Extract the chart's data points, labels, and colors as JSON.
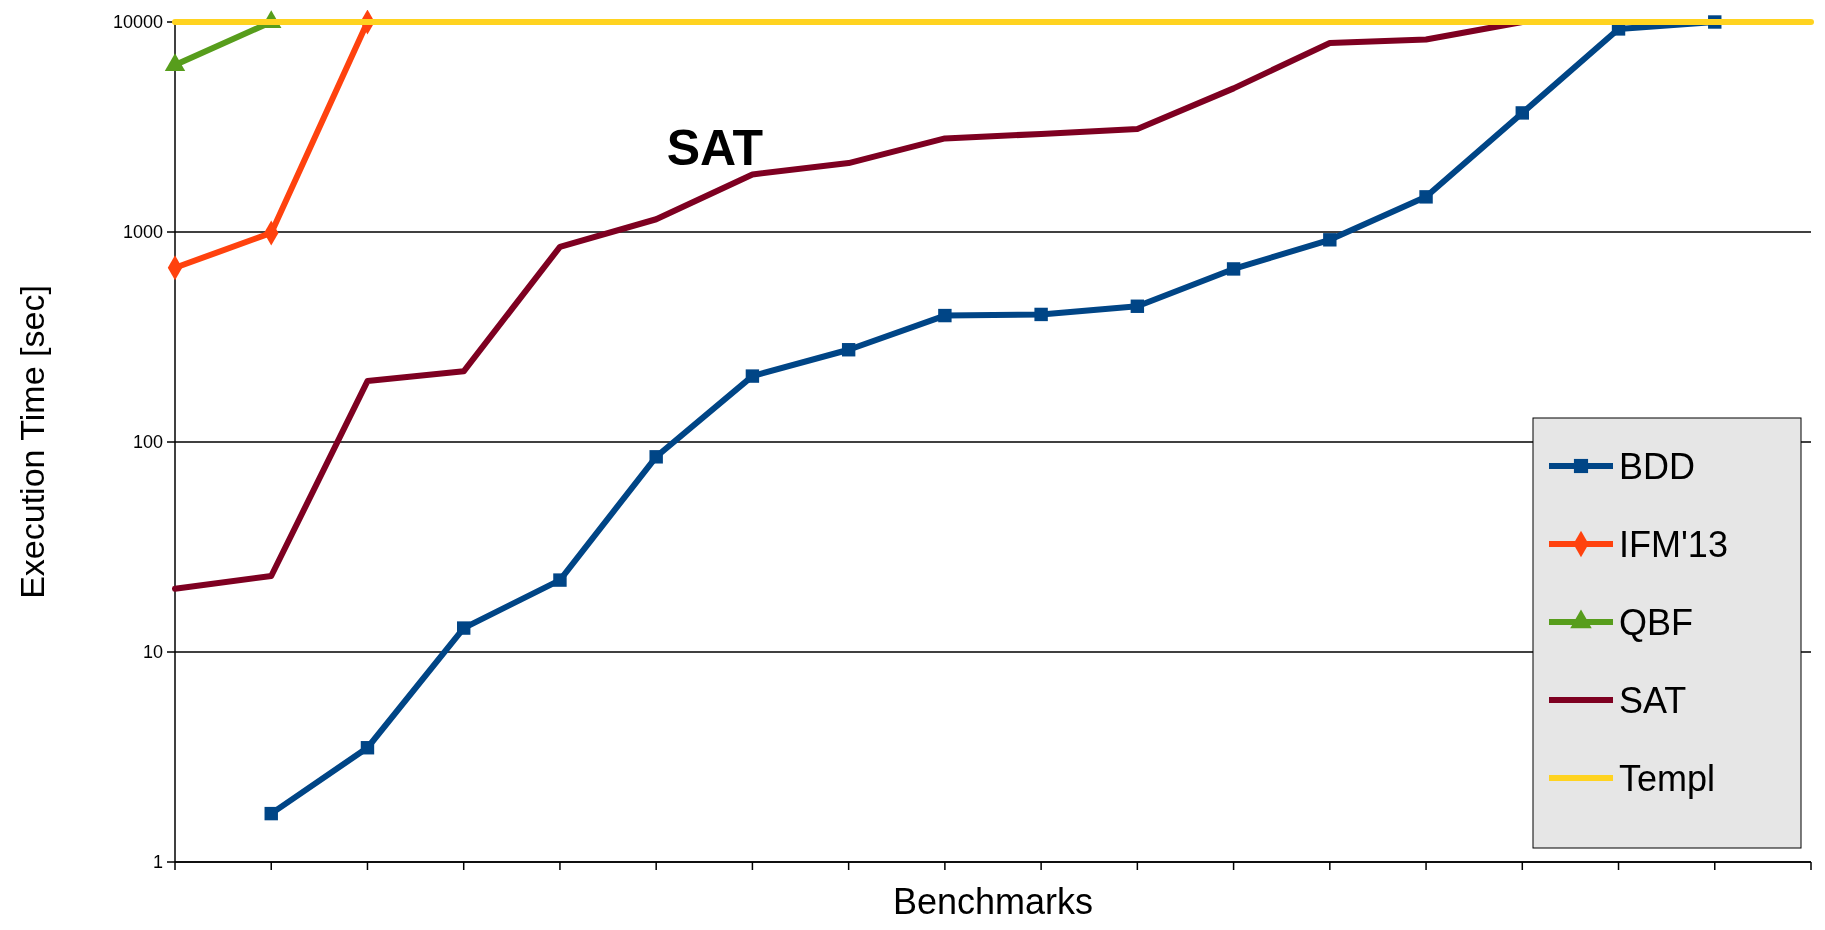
{
  "chart_data": {
    "type": "line",
    "xlabel": "Benchmarks",
    "ylabel": "Execution Time [sec]",
    "categories": [
      null,
      null,
      null,
      null,
      null,
      null,
      null,
      null,
      null,
      null,
      null,
      null,
      null,
      null,
      null,
      null,
      null,
      null
    ],
    "log": true,
    "ylim": [
      1,
      10000
    ],
    "yticks": [
      1,
      10,
      100,
      1000,
      10000
    ],
    "grid": "y",
    "legend": "bottom right",
    "annotations": [
      "SAT"
    ],
    "series": [
      {
        "name": "BDD",
        "color": "#004586",
        "marker": "square",
        "values": [
          null,
          1.7,
          3.5,
          13,
          22,
          85,
          206,
          275,
          400,
          405,
          443,
          667,
          918,
          1470,
          3690,
          9270,
          10000,
          null
        ]
      },
      {
        "name": "IFM'13",
        "color": "#ff420e",
        "marker": "diamond",
        "values": [
          676,
          990,
          10000,
          null,
          null,
          null,
          null,
          null,
          null,
          null,
          null,
          null,
          null,
          null,
          null,
          null,
          null,
          null
        ]
      },
      {
        "name": "QBF",
        "color": "#579d1c",
        "marker": "triangle",
        "values": [
          6240,
          10000,
          null,
          null,
          null,
          null,
          null,
          null,
          null,
          null,
          null,
          null,
          null,
          null,
          null,
          null,
          null,
          null
        ]
      },
      {
        "name": "SAT",
        "color": "#7e0021",
        "marker": "none",
        "values": [
          20,
          23,
          195,
          217,
          850,
          1150,
          1880,
          2130,
          2790,
          2930,
          3090,
          4830,
          7950,
          8260,
          10000,
          null,
          null,
          null
        ]
      },
      {
        "name": "Templ",
        "color": "#ffd320",
        "marker": "none",
        "values": [
          10000,
          10000,
          10000,
          10000,
          10000,
          10000,
          10000,
          10000,
          10000,
          10000,
          10000,
          10000,
          10000,
          10000,
          10000,
          10000,
          10000,
          10000
        ]
      }
    ]
  }
}
